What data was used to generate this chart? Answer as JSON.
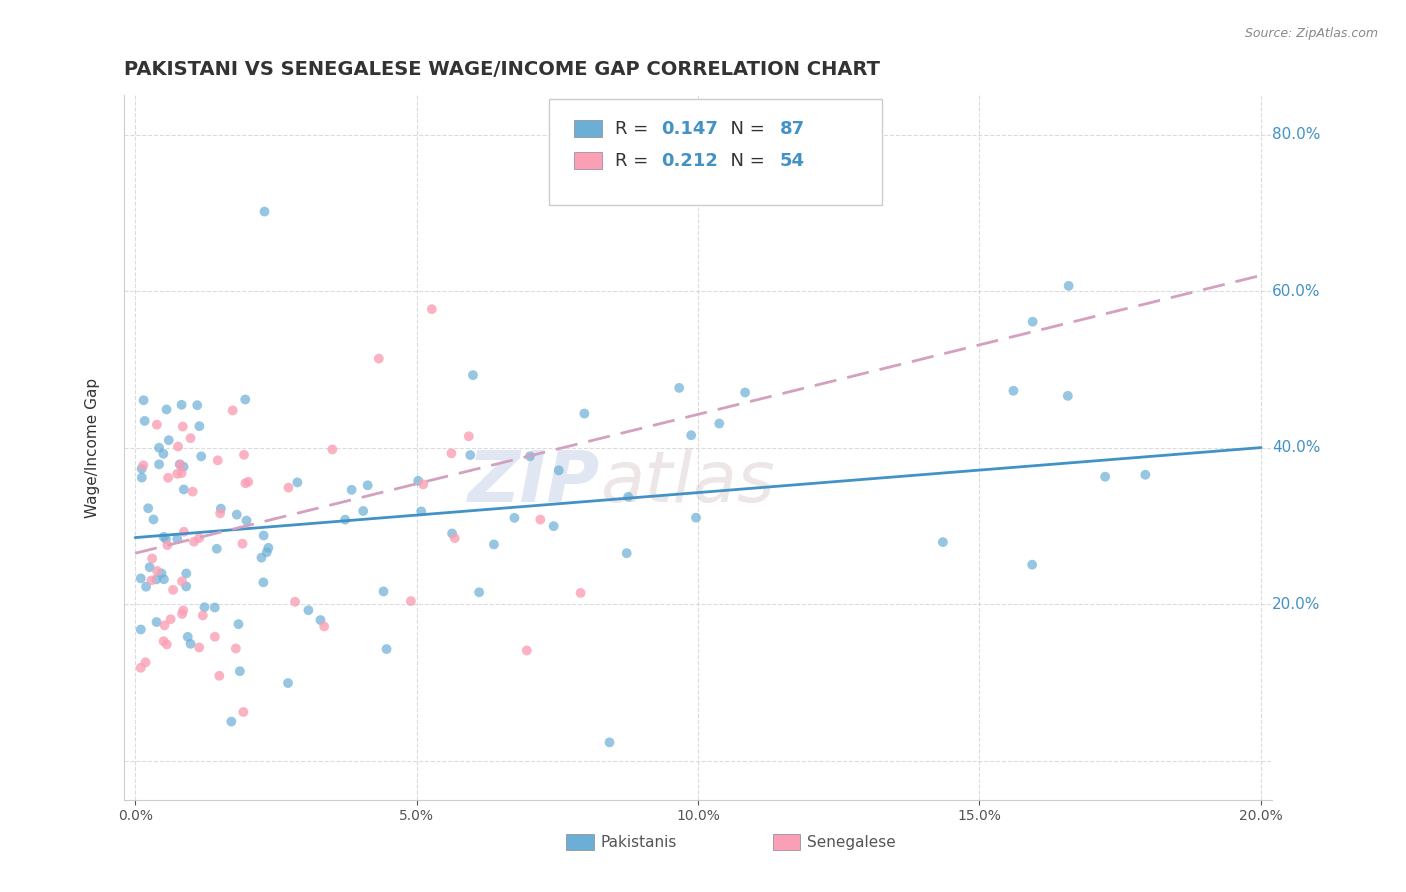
{
  "title": "PAKISTANI VS SENEGALESE WAGE/INCOME GAP CORRELATION CHART",
  "source": "Source: ZipAtlas.com",
  "ylabel": "Wage/Income Gap",
  "legend_r1": "0.147",
  "legend_n1": "87",
  "legend_r2": "0.212",
  "legend_n2": "54",
  "pakistani_color": "#6baed6",
  "senegalese_color": "#fa9fb5",
  "trend_pakistani_color": "#4292c6",
  "trend_senegalese_color": "#d4a0c0",
  "watermark_zip": "ZIP",
  "watermark_atlas": "atlas",
  "background_color": "#ffffff",
  "grid_color": "#cccccc",
  "right_label_color": "#4292c6",
  "xlim": [
    0.0,
    0.2
  ],
  "ylim": [
    -0.05,
    0.85
  ],
  "pak_trend_y0": 0.285,
  "pak_trend_y1": 0.4,
  "sen_trend_y0": 0.265,
  "sen_trend_y1": 0.62
}
